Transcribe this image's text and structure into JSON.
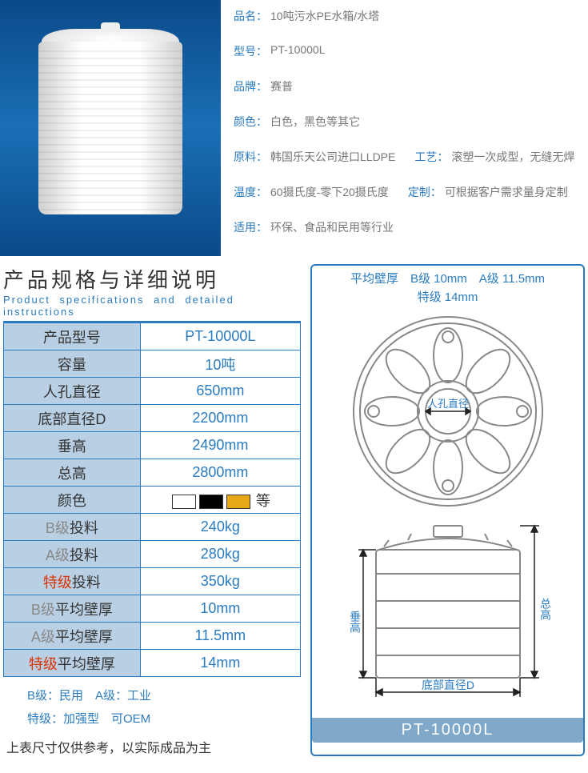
{
  "product": {
    "info": [
      {
        "label": "品名：",
        "value": "10吨污水PE水箱/水塔"
      },
      {
        "label": "型号：",
        "value": "PT-10000L"
      },
      {
        "label": "品牌：",
        "value": "赛普"
      },
      {
        "label": "颜色：",
        "value": "白色，黑色等其它"
      },
      {
        "label": "原料：",
        "value": "韩国乐天公司进口LLDPE",
        "label2": "工艺：",
        "value2": "滚塑一次成型，无缝无焊"
      },
      {
        "label": "温度：",
        "value": "60摄氏度-零下20摄氏度",
        "label2": "定制：",
        "value2": "可根据客户需求量身定制"
      },
      {
        "label": "适用：",
        "value": "环保、食品和民用等行业"
      }
    ]
  },
  "section": {
    "title_cn": "产品规格与详细说明",
    "title_en": "Product specifications and detailed instructions"
  },
  "spec_table": {
    "rows": [
      {
        "label": "产品型号",
        "value": "PT-10000L"
      },
      {
        "label": "容量",
        "value": "10吨"
      },
      {
        "label": "人孔直径",
        "value": "650mm"
      },
      {
        "label": "底部直径D",
        "value": "2200mm"
      },
      {
        "label": "垂高",
        "value": "2490mm"
      },
      {
        "label": "总高",
        "value": "2800mm"
      },
      {
        "label": "颜色",
        "value_swatches": true,
        "swatches": [
          "#ffffff",
          "#000000",
          "#e6a817"
        ],
        "suffix": "等"
      },
      {
        "label_grade": "B级",
        "label_rest": "投料",
        "grade_class": "grade-b",
        "value": "240kg"
      },
      {
        "label_grade": "A级",
        "label_rest": "投料",
        "grade_class": "grade-a",
        "value": "280kg"
      },
      {
        "label_grade": "特级",
        "label_rest": "投料",
        "grade_class": "grade-s",
        "value": "350kg"
      },
      {
        "label_grade": "B级",
        "label_rest": "平均壁厚",
        "grade_class": "grade-b",
        "value": "10mm"
      },
      {
        "label_grade": "A级",
        "label_rest": "平均壁厚",
        "grade_class": "grade-a",
        "value": "11.5mm"
      },
      {
        "label_grade": "特级",
        "label_rest": "平均壁厚",
        "grade_class": "grade-s",
        "value": "14mm"
      }
    ]
  },
  "footnotes": {
    "line1": "B级：民用　A级：工业",
    "line2": "特级：加强型　可OEM"
  },
  "disclaimer": "上表尺寸仅供参考，以实际成品为主",
  "thickness": {
    "line1": "平均壁厚　B级 10mm　A级 11.5mm",
    "line2": "特级 14mm"
  },
  "diagram": {
    "manhole_label": "人孔直径",
    "vert_height_label": "垂高",
    "total_height_label": "总高",
    "bottom_diameter_label": "底部直径D",
    "model": "PT-10000L",
    "stroke": "#888888",
    "label_color": "#2a7bbf",
    "arrow_color": "#222222"
  },
  "colors": {
    "accent": "#2a7bbf",
    "table_header_bg": "#b9cfe3",
    "model_bar_bg": "#7fa8c9"
  }
}
